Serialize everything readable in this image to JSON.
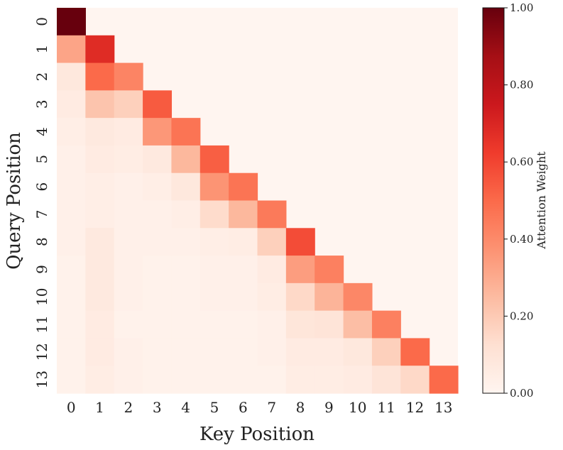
{
  "chart_data": {
    "type": "heatmap",
    "xlabel": "Key Position",
    "ylabel": "Query Position",
    "x_ticks": [
      "0",
      "1",
      "2",
      "3",
      "4",
      "5",
      "6",
      "7",
      "8",
      "9",
      "10",
      "11",
      "12",
      "13"
    ],
    "y_ticks": [
      "0",
      "1",
      "2",
      "3",
      "4",
      "5",
      "6",
      "7",
      "8",
      "9",
      "10",
      "11",
      "12",
      "13"
    ],
    "colorbar": {
      "label": "Attention Weight",
      "ticks": [
        "0.00",
        "0.20",
        "0.40",
        "0.60",
        "0.80",
        "1.00"
      ],
      "tick_values": [
        0,
        0.2,
        0.4,
        0.6,
        0.8,
        1.0
      ],
      "range": [
        0,
        1
      ],
      "colormap": "Reds"
    },
    "mask": "upper-triangle-above-diagonal",
    "values": [
      [
        1.0
      ],
      [
        0.32,
        0.68
      ],
      [
        0.08,
        0.5,
        0.42
      ],
      [
        0.06,
        0.22,
        0.18,
        0.54
      ],
      [
        0.04,
        0.07,
        0.06,
        0.36,
        0.47
      ],
      [
        0.03,
        0.06,
        0.05,
        0.07,
        0.26,
        0.53
      ],
      [
        0.03,
        0.04,
        0.03,
        0.04,
        0.08,
        0.37,
        0.47
      ],
      [
        0.03,
        0.04,
        0.03,
        0.03,
        0.04,
        0.14,
        0.26,
        0.45
      ],
      [
        0.03,
        0.07,
        0.03,
        0.03,
        0.03,
        0.04,
        0.05,
        0.18,
        0.58
      ],
      [
        0.02,
        0.07,
        0.03,
        0.02,
        0.02,
        0.03,
        0.03,
        0.06,
        0.34,
        0.43
      ],
      [
        0.02,
        0.07,
        0.03,
        0.02,
        0.02,
        0.03,
        0.03,
        0.05,
        0.15,
        0.27,
        0.41
      ],
      [
        0.02,
        0.06,
        0.02,
        0.02,
        0.02,
        0.02,
        0.02,
        0.03,
        0.09,
        0.1,
        0.24,
        0.43
      ],
      [
        0.02,
        0.06,
        0.03,
        0.02,
        0.02,
        0.02,
        0.02,
        0.03,
        0.06,
        0.06,
        0.08,
        0.18,
        0.5
      ],
      [
        0.02,
        0.05,
        0.03,
        0.02,
        0.02,
        0.02,
        0.02,
        0.02,
        0.05,
        0.05,
        0.06,
        0.1,
        0.15,
        0.5
      ]
    ]
  }
}
